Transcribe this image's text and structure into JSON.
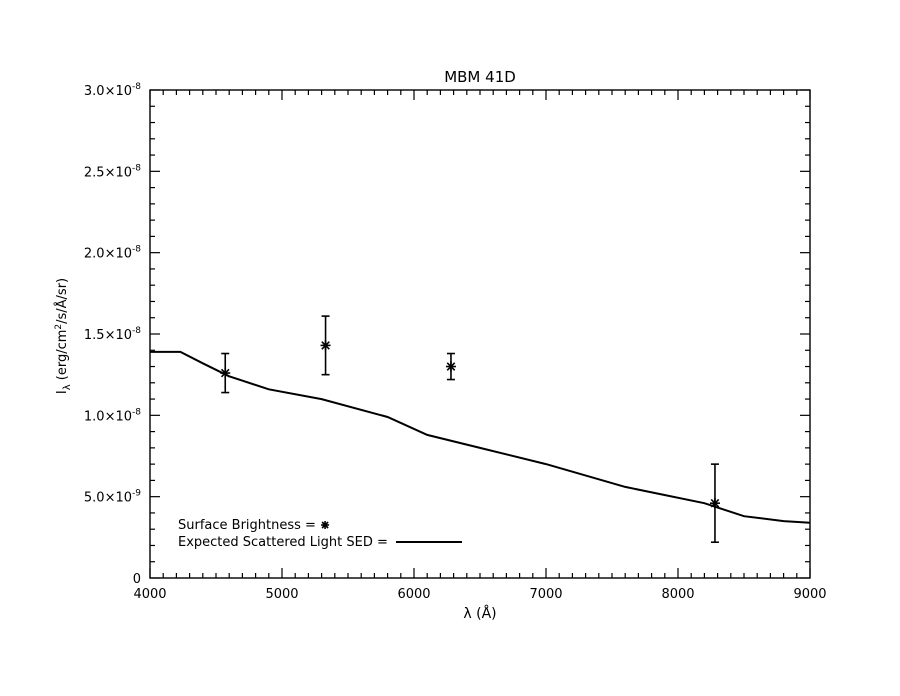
{
  "chart_data": {
    "type": "scatter",
    "title": "MBM 41D",
    "xlabel": "λ (Å)",
    "ylabel": "I_λ (erg/cm²/s/Å/sr)",
    "xlim": [
      4000,
      9000
    ],
    "ylim": [
      0,
      3e-08
    ],
    "grid": false,
    "x_ticks": [
      4000,
      5000,
      6000,
      7000,
      8000,
      9000
    ],
    "x_tick_labels": [
      "4000",
      "5000",
      "6000",
      "7000",
      "8000",
      "9000"
    ],
    "y_ticks": [
      0,
      5e-09,
      1e-08,
      1.5e-08,
      2e-08,
      2.5e-08,
      3e-08
    ],
    "y_tick_labels": [
      {
        "mantissa": "0",
        "exp": ""
      },
      {
        "mantissa": "5.0×10",
        "exp": "-9"
      },
      {
        "mantissa": "1.0×10",
        "exp": "-8"
      },
      {
        "mantissa": "1.5×10",
        "exp": "-8"
      },
      {
        "mantissa": "2.0×10",
        "exp": "-8"
      },
      {
        "mantissa": "2.5×10",
        "exp": "-8"
      },
      {
        "mantissa": "3.0×10",
        "exp": "-8"
      }
    ],
    "series": [
      {
        "name": "Surface Brightness",
        "marker": "asterisk",
        "x": [
          4570,
          5330,
          6280,
          8280
        ],
        "y": [
          1.26e-08,
          1.43e-08,
          1.3e-08,
          4.6e-09
        ],
        "y_err_low": [
          1.14e-08,
          1.25e-08,
          1.22e-08,
          2.2e-09
        ],
        "y_err_high": [
          1.38e-08,
          1.61e-08,
          1.38e-08,
          7e-09
        ]
      },
      {
        "name": "Expected Scattered Light SED",
        "marker": "line",
        "x": [
          4000,
          4230,
          4400,
          4600,
          4900,
          5300,
          5800,
          6100,
          6500,
          7000,
          7600,
          8200,
          8500,
          8800,
          9000
        ],
        "y": [
          1.39e-08,
          1.39e-08,
          1.32e-08,
          1.24e-08,
          1.16e-08,
          1.1e-08,
          9.9e-09,
          8.8e-09,
          8e-09,
          7e-09,
          5.6e-09,
          4.6e-09,
          3.8e-09,
          3.5e-09,
          3.4e-09
        ]
      }
    ],
    "legend": {
      "placement": "bottom-left",
      "entries": [
        {
          "label": "Surface Brightness = ",
          "marker": "asterisk"
        },
        {
          "label": "Expected Scattered Light SED = ",
          "marker": "line"
        }
      ]
    }
  }
}
